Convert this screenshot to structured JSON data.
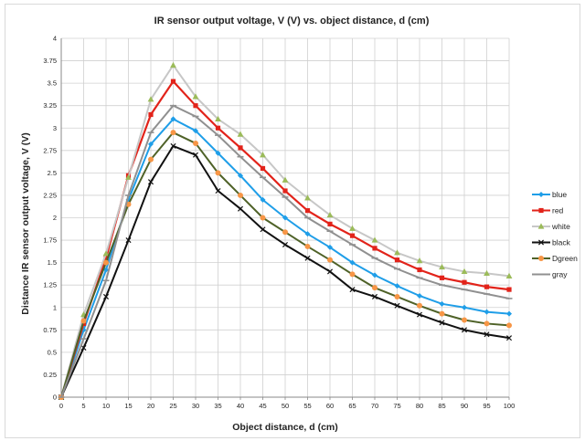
{
  "chart_data": {
    "type": "line",
    "title": "IR sensor output voltage, V (V) vs. object distance, d (cm)",
    "xlabel": "Object distance, d (cm)",
    "ylabel": "Distance IR sensor output voltage, V (V)",
    "xlim": [
      0,
      100
    ],
    "ylim": [
      0,
      4
    ],
    "x": [
      0,
      5,
      10,
      15,
      20,
      25,
      30,
      35,
      40,
      45,
      50,
      55,
      60,
      65,
      70,
      75,
      80,
      85,
      90,
      95,
      100
    ],
    "x_ticks": [
      "0",
      "5",
      "10",
      "15",
      "20",
      "25",
      "30",
      "35",
      "40",
      "45",
      "50",
      "55",
      "60",
      "65",
      "70",
      "75",
      "80",
      "85",
      "90",
      "95",
      "100"
    ],
    "y_ticks": [
      "0",
      "0.25",
      "0.5",
      "0.75",
      "1",
      "1.25",
      "1.5",
      "1.75",
      "2",
      "2.25",
      "2.5",
      "2.75",
      "3",
      "3.25",
      "3.5",
      "3.75",
      "4"
    ],
    "grid": true,
    "legend_position": "right",
    "series": [
      {
        "name": "blue",
        "color": "#1f9ee8",
        "marker": "diamond",
        "values": [
          0,
          0.75,
          1.42,
          2.2,
          2.82,
          3.1,
          2.97,
          2.72,
          2.47,
          2.2,
          2.0,
          1.82,
          1.67,
          1.5,
          1.36,
          1.24,
          1.13,
          1.04,
          1.0,
          0.95,
          0.93
        ]
      },
      {
        "name": "red",
        "color": "#e2231a",
        "marker": "square",
        "values": [
          0,
          0.82,
          1.55,
          2.47,
          3.15,
          3.52,
          3.25,
          3.0,
          2.78,
          2.55,
          2.3,
          2.08,
          1.93,
          1.8,
          1.66,
          1.53,
          1.42,
          1.33,
          1.28,
          1.23,
          1.2
        ]
      },
      {
        "name": "white",
        "color": "#c7c7c7",
        "marker": "triangle",
        "marker_color": "#9bbb59",
        "values": [
          0,
          0.92,
          1.6,
          2.45,
          3.32,
          3.7,
          3.35,
          3.1,
          2.93,
          2.7,
          2.42,
          2.22,
          2.03,
          1.88,
          1.75,
          1.61,
          1.52,
          1.45,
          1.4,
          1.38,
          1.35
        ]
      },
      {
        "name": "black",
        "color": "#111111",
        "marker": "cross",
        "values": [
          0,
          0.55,
          1.12,
          1.75,
          2.4,
          2.8,
          2.7,
          2.3,
          2.1,
          1.87,
          1.7,
          1.55,
          1.4,
          1.2,
          1.12,
          1.02,
          0.92,
          0.83,
          0.75,
          0.7,
          0.66
        ]
      },
      {
        "name": "Dgreen",
        "color": "#4f6228",
        "marker": "circle",
        "marker_color": "#f79646",
        "values": [
          0,
          0.85,
          1.5,
          2.15,
          2.65,
          2.95,
          2.83,
          2.5,
          2.25,
          2.0,
          1.84,
          1.68,
          1.53,
          1.37,
          1.22,
          1.12,
          1.02,
          0.93,
          0.86,
          0.82,
          0.8
        ]
      },
      {
        "name": "gray",
        "color": "#909090",
        "marker": "dash",
        "values": [
          0,
          0.65,
          1.3,
          2.25,
          2.95,
          3.25,
          3.13,
          2.92,
          2.68,
          2.45,
          2.23,
          2.0,
          1.85,
          1.7,
          1.55,
          1.43,
          1.33,
          1.25,
          1.2,
          1.15,
          1.1
        ]
      }
    ]
  }
}
